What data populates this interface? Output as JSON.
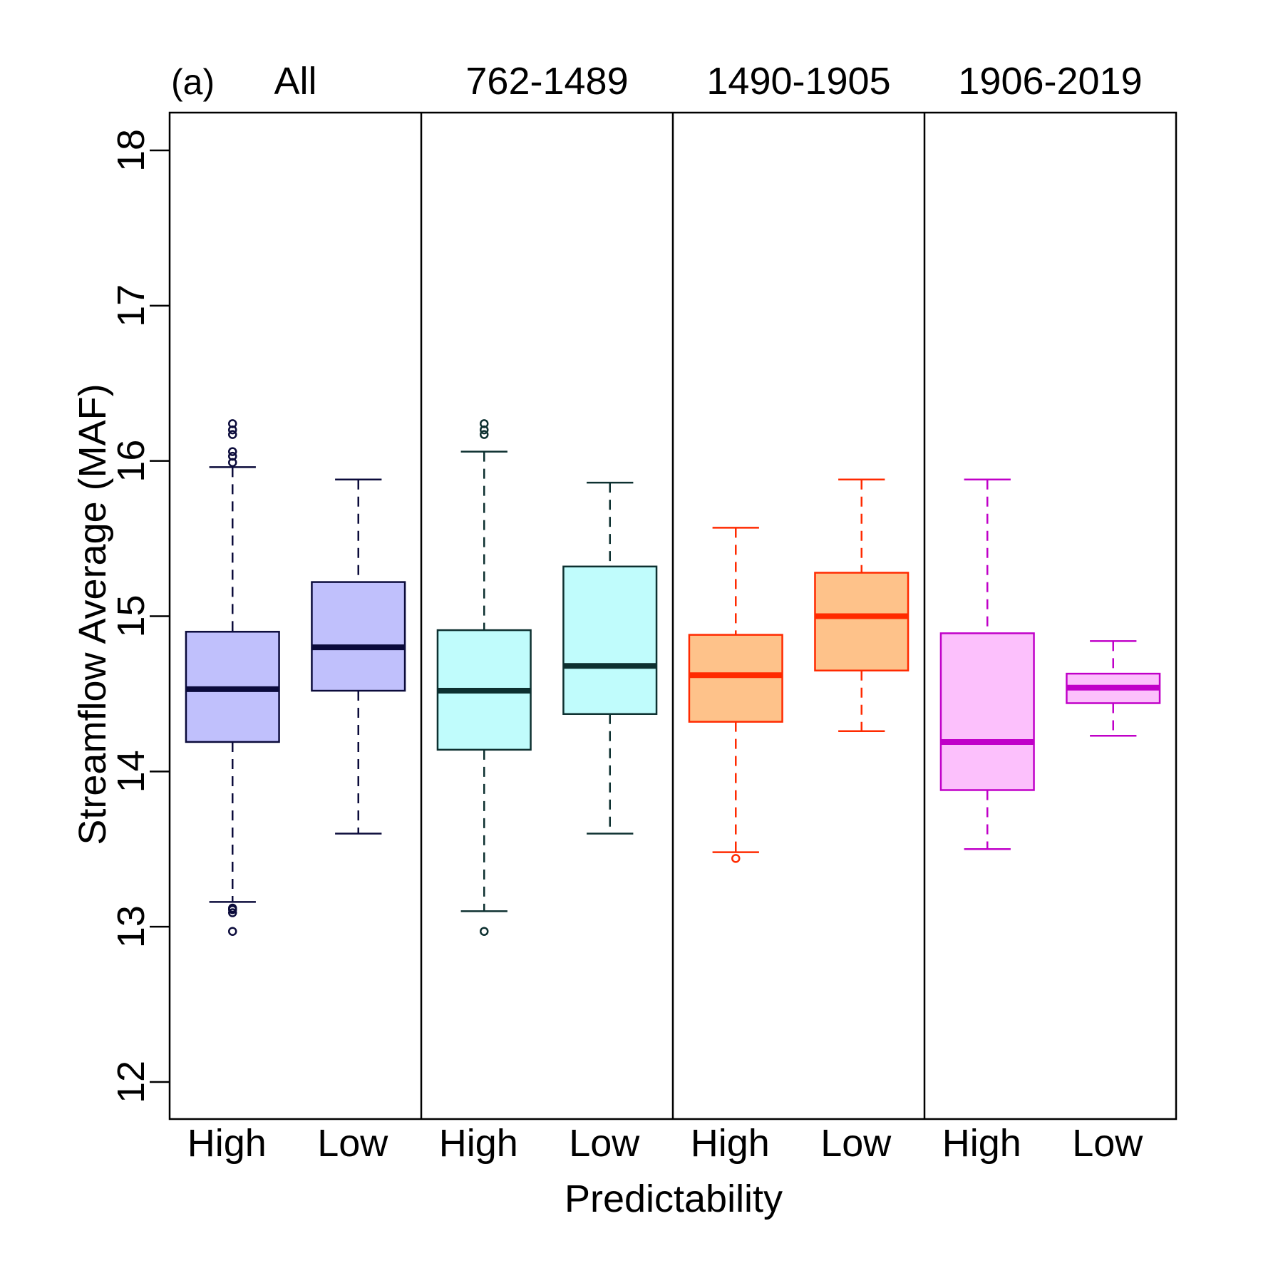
{
  "chart_data": {
    "type": "boxplot",
    "panel_label": "(a)",
    "xlabel": "Predictability",
    "ylabel": "Streamflow Average (MAF)",
    "ylim": [
      11.8,
      18.3
    ],
    "yticks": [
      "12",
      "13",
      "14",
      "15",
      "16",
      "17",
      "18"
    ],
    "groups": [
      {
        "title": "All",
        "color": "#0b0b3b",
        "fill": "#c0c0fc",
        "boxes": [
          {
            "label": "High",
            "lower_whisker": 13.16,
            "q1": 14.19,
            "median": 14.53,
            "q3": 14.9,
            "upper_whisker": 15.96,
            "outliers": [
              13.09,
              13.11,
              13.12,
              12.97,
              15.99,
              16.03,
              16.06,
              16.17,
              16.2,
              16.24
            ]
          },
          {
            "label": "Low",
            "lower_whisker": 13.6,
            "q1": 14.52,
            "median": 14.8,
            "q3": 15.22,
            "upper_whisker": 15.88,
            "outliers": []
          }
        ]
      },
      {
        "title": "762-1489",
        "color": "#0d3030",
        "fill": "#c0fcfc",
        "boxes": [
          {
            "label": "High",
            "lower_whisker": 13.1,
            "q1": 14.14,
            "median": 14.52,
            "q3": 14.91,
            "upper_whisker": 16.06,
            "outliers": [
              12.97,
              16.17,
              16.2,
              16.24
            ]
          },
          {
            "label": "Low",
            "lower_whisker": 13.6,
            "q1": 14.37,
            "median": 14.68,
            "q3": 15.32,
            "upper_whisker": 15.86,
            "outliers": []
          }
        ]
      },
      {
        "title": "1490-1905",
        "color": "#ff2a00",
        "fill": "#fec28a",
        "boxes": [
          {
            "label": "High",
            "lower_whisker": 13.48,
            "q1": 14.32,
            "median": 14.62,
            "q3": 14.88,
            "upper_whisker": 15.57,
            "outliers": [
              13.44
            ]
          },
          {
            "label": "Low",
            "lower_whisker": 14.26,
            "q1": 14.65,
            "median": 15.0,
            "q3": 15.28,
            "upper_whisker": 15.88,
            "outliers": []
          }
        ]
      },
      {
        "title": "1906-2019",
        "color": "#c000c8",
        "fill": "#fcc0fc",
        "boxes": [
          {
            "label": "High",
            "lower_whisker": 13.5,
            "q1": 13.88,
            "median": 14.19,
            "q3": 14.89,
            "upper_whisker": 15.88,
            "outliers": []
          },
          {
            "label": "Low",
            "lower_whisker": 14.23,
            "q1": 14.44,
            "median": 14.54,
            "q3": 14.63,
            "upper_whisker": 14.84,
            "outliers": []
          }
        ]
      }
    ]
  }
}
